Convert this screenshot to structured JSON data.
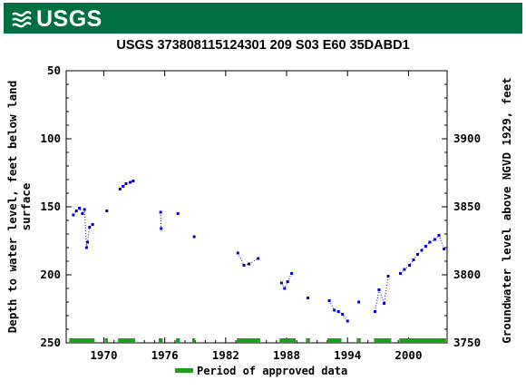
{
  "logo": {
    "text": "USGS",
    "icon": "usgs-wave-icon",
    "brand_color": "#006f41"
  },
  "chart_data": {
    "type": "scatter",
    "title": "USGS 373808115124301 209  S03 E60 35DABD1",
    "ylabel": "Depth to water level, feet below land surface",
    "ylabel_right": "Groundwater level above NGVD 1929, feet",
    "legend_label": "Period of approved data",
    "legend_placement": "bottom",
    "xlim": [
      1966.3,
      2003.8
    ],
    "ylim": [
      50,
      250
    ],
    "y_inverted": true,
    "ylim_right": [
      3750,
      3950
    ],
    "x_ticks": [
      "1970",
      "1976",
      "1982",
      "1988",
      "1994",
      "2000"
    ],
    "x_tick_values": [
      1970,
      1976,
      1982,
      1988,
      1994,
      2000
    ],
    "y_ticks": [
      "50",
      "100",
      "150",
      "200",
      "250"
    ],
    "y_tick_values": [
      50,
      100,
      150,
      200,
      250
    ],
    "y_ticks_right": [
      "3900",
      "3850",
      "3800",
      "3750"
    ],
    "y_tick_values_right": [
      3900,
      3850,
      3800,
      3750
    ],
    "grid": false,
    "point_color": "#0000cc",
    "approved_color": "#1e9e1e",
    "series": [
      {
        "x": [
          1967.0,
          1967.3,
          1967.6,
          1967.9,
          1968.1,
          1968.3,
          1968.4,
          1968.6,
          1968.9
        ],
        "y": [
          156,
          153,
          151,
          155,
          152,
          180,
          176,
          165,
          163
        ]
      },
      {
        "x": [
          1970.3
        ],
        "y": [
          153
        ]
      },
      {
        "x": [
          1971.6,
          1971.9,
          1972.2,
          1972.6,
          1972.9
        ],
        "y": [
          137,
          135,
          133,
          132,
          131
        ]
      },
      {
        "x": [
          1975.6,
          1975.65
        ],
        "y": [
          154,
          166
        ]
      },
      {
        "x": [
          1977.3
        ],
        "y": [
          155
        ]
      },
      {
        "x": [
          1978.9
        ],
        "y": [
          172
        ]
      },
      {
        "x": [
          1983.2,
          1983.8,
          1984.3,
          1985.2
        ],
        "y": [
          184,
          193,
          192,
          188
        ]
      },
      {
        "x": [
          1987.5,
          1987.8,
          1988.1,
          1988.5
        ],
        "y": [
          206,
          210,
          205,
          199
        ]
      },
      {
        "x": [
          1990.1
        ],
        "y": [
          217
        ]
      },
      {
        "x": [
          1992.2,
          1992.7,
          1993.1,
          1993.5,
          1994.0
        ],
        "y": [
          219,
          226,
          227,
          229,
          234
        ]
      },
      {
        "x": [
          1995.1
        ],
        "y": [
          220
        ]
      },
      {
        "x": [
          1996.7,
          1997.1,
          1997.6,
          1998.0
        ],
        "y": [
          227,
          211,
          221,
          201
        ]
      },
      {
        "x": [
          1999.2,
          1999.6,
          2000.1,
          2000.5,
          2000.9,
          2001.3,
          2001.7,
          2002.1,
          2002.6,
          2003.0,
          2003.5
        ],
        "y": [
          199,
          196,
          193,
          189,
          185,
          182,
          179,
          176,
          174,
          171,
          181
        ]
      }
    ],
    "approved_periods": [
      [
        1966.6,
        1969.1
      ],
      [
        1970.1,
        1970.4
      ],
      [
        1971.4,
        1973.1
      ],
      [
        1975.4,
        1975.8
      ],
      [
        1977.1,
        1977.5
      ],
      [
        1978.7,
        1979.0
      ],
      [
        1983.1,
        1985.4
      ],
      [
        1987.3,
        1988.9
      ],
      [
        1989.9,
        1990.3
      ],
      [
        1992.0,
        1993.4
      ],
      [
        1994.9,
        1995.3
      ],
      [
        1996.6,
        1998.3
      ],
      [
        1999.1,
        2003.7
      ]
    ]
  }
}
